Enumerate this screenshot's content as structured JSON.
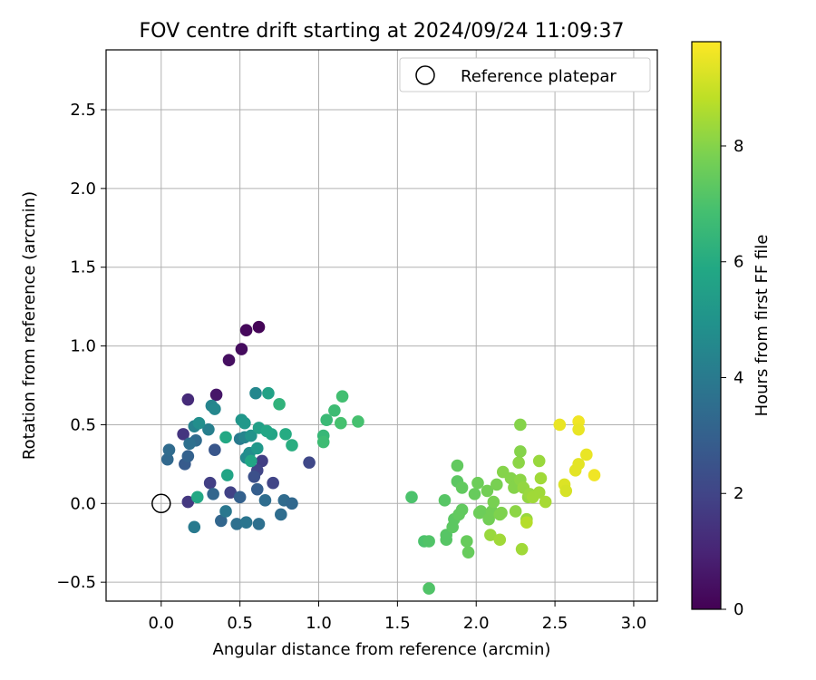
{
  "chart_data": {
    "type": "scatter",
    "title": "FOV centre drift starting at 2024/09/24 11:09:37",
    "xlabel": "Angular distance from reference (arcmin)",
    "ylabel": "Rotation from reference (arcmin)",
    "xlim": [
      -0.35,
      3.15
    ],
    "ylim": [
      -0.62,
      2.88
    ],
    "x_ticks": [
      "0.0",
      "0.5",
      "1.0",
      "1.5",
      "2.0",
      "2.5",
      "3.0"
    ],
    "y_ticks": [
      "−0.5",
      "0.0",
      "0.5",
      "1.0",
      "1.5",
      "2.0",
      "2.5"
    ],
    "grid": true,
    "legend": {
      "placement": "top-right",
      "entries": [
        "Reference platepar"
      ]
    },
    "reference_point": {
      "x": 0.0,
      "y": 0.0
    },
    "colorbar": {
      "label": "Hours from first FF file",
      "colormap": "viridis",
      "range": [
        0,
        9.8
      ],
      "ticks": [
        "0",
        "2",
        "4",
        "6",
        "8"
      ]
    },
    "colors": [
      "#440154",
      "#3b528b",
      "#21918c",
      "#5ec962",
      "#fde725"
    ],
    "points": [
      {
        "x": 0.62,
        "y": 1.12,
        "h": 0.1
      },
      {
        "x": 0.54,
        "y": 1.1,
        "h": 0.2
      },
      {
        "x": 0.51,
        "y": 0.98,
        "h": 0.3
      },
      {
        "x": 0.43,
        "y": 0.91,
        "h": 0.4
      },
      {
        "x": 0.35,
        "y": 0.69,
        "h": 0.6
      },
      {
        "x": 0.17,
        "y": 0.66,
        "h": 1.2
      },
      {
        "x": 0.14,
        "y": 0.44,
        "h": 1.5
      },
      {
        "x": 0.17,
        "y": 0.01,
        "h": 1.6
      },
      {
        "x": 0.31,
        "y": 0.13,
        "h": 1.8
      },
      {
        "x": 0.44,
        "y": 0.07,
        "h": 1.9
      },
      {
        "x": 0.64,
        "y": 0.27,
        "h": 1.8
      },
      {
        "x": 0.61,
        "y": 0.21,
        "h": 2.0
      },
      {
        "x": 0.71,
        "y": 0.13,
        "h": 2.0
      },
      {
        "x": 0.94,
        "y": 0.26,
        "h": 2.1
      },
      {
        "x": 0.59,
        "y": 0.17,
        "h": 2.4
      },
      {
        "x": 0.34,
        "y": 0.34,
        "h": 2.6
      },
      {
        "x": 0.15,
        "y": 0.25,
        "h": 2.8
      },
      {
        "x": 0.17,
        "y": 0.3,
        "h": 3.0
      },
      {
        "x": 0.61,
        "y": 0.09,
        "h": 2.9
      },
      {
        "x": 0.5,
        "y": 0.04,
        "h": 3.0
      },
      {
        "x": 0.33,
        "y": 0.06,
        "h": 3.2
      },
      {
        "x": 0.04,
        "y": 0.28,
        "h": 3.3
      },
      {
        "x": 0.05,
        "y": 0.34,
        "h": 3.4
      },
      {
        "x": 0.22,
        "y": 0.4,
        "h": 3.4
      },
      {
        "x": 0.18,
        "y": 0.38,
        "h": 3.6
      },
      {
        "x": 0.38,
        "y": -0.11,
        "h": 3.2
      },
      {
        "x": 0.48,
        "y": -0.13,
        "h": 3.6
      },
      {
        "x": 0.54,
        "y": -0.12,
        "h": 3.8
      },
      {
        "x": 0.62,
        "y": -0.13,
        "h": 3.6
      },
      {
        "x": 0.21,
        "y": -0.15,
        "h": 4.0
      },
      {
        "x": 0.41,
        "y": -0.05,
        "h": 3.9
      },
      {
        "x": 0.66,
        "y": 0.02,
        "h": 3.5
      },
      {
        "x": 0.76,
        "y": -0.07,
        "h": 3.5
      },
      {
        "x": 0.78,
        "y": 0.02,
        "h": 3.4
      },
      {
        "x": 0.83,
        "y": 0.0,
        "h": 3.3
      },
      {
        "x": 0.3,
        "y": 0.47,
        "h": 4.2
      },
      {
        "x": 0.21,
        "y": 0.49,
        "h": 4.3
      },
      {
        "x": 0.32,
        "y": 0.62,
        "h": 4.4
      },
      {
        "x": 0.34,
        "y": 0.6,
        "h": 4.5
      },
      {
        "x": 0.24,
        "y": 0.51,
        "h": 4.8
      },
      {
        "x": 0.5,
        "y": 0.41,
        "h": 4.0
      },
      {
        "x": 0.53,
        "y": 0.42,
        "h": 4.4
      },
      {
        "x": 0.6,
        "y": 0.7,
        "h": 4.5
      },
      {
        "x": 0.54,
        "y": 0.29,
        "h": 4.6
      },
      {
        "x": 0.56,
        "y": 0.32,
        "h": 4.8
      },
      {
        "x": 0.57,
        "y": 0.43,
        "h": 5.0
      },
      {
        "x": 0.51,
        "y": 0.53,
        "h": 5.1
      },
      {
        "x": 0.53,
        "y": 0.51,
        "h": 5.2
      },
      {
        "x": 0.61,
        "y": 0.35,
        "h": 5.2
      },
      {
        "x": 0.62,
        "y": 0.48,
        "h": 5.5
      },
      {
        "x": 0.68,
        "y": 0.7,
        "h": 5.6
      },
      {
        "x": 0.7,
        "y": 0.44,
        "h": 5.7
      },
      {
        "x": 0.67,
        "y": 0.46,
        "h": 5.8
      },
      {
        "x": 0.57,
        "y": 0.27,
        "h": 5.8
      },
      {
        "x": 0.42,
        "y": 0.18,
        "h": 5.7
      },
      {
        "x": 0.41,
        "y": 0.42,
        "h": 5.9
      },
      {
        "x": 0.23,
        "y": 0.04,
        "h": 5.9
      },
      {
        "x": 0.79,
        "y": 0.44,
        "h": 6.0
      },
      {
        "x": 0.83,
        "y": 0.37,
        "h": 6.1
      },
      {
        "x": 0.75,
        "y": 0.63,
        "h": 6.3
      },
      {
        "x": 1.03,
        "y": 0.43,
        "h": 6.5
      },
      {
        "x": 1.05,
        "y": 0.53,
        "h": 6.6
      },
      {
        "x": 1.03,
        "y": 0.39,
        "h": 6.7
      },
      {
        "x": 1.1,
        "y": 0.59,
        "h": 6.7
      },
      {
        "x": 1.15,
        "y": 0.68,
        "h": 6.8
      },
      {
        "x": 1.14,
        "y": 0.51,
        "h": 6.9
      },
      {
        "x": 1.25,
        "y": 0.52,
        "h": 6.9
      },
      {
        "x": 1.59,
        "y": 0.04,
        "h": 7.0
      },
      {
        "x": 1.67,
        "y": -0.24,
        "h": 7.0
      },
      {
        "x": 1.7,
        "y": -0.24,
        "h": 7.1
      },
      {
        "x": 1.7,
        "y": -0.54,
        "h": 7.1
      },
      {
        "x": 1.8,
        "y": 0.02,
        "h": 7.2
      },
      {
        "x": 1.81,
        "y": -0.2,
        "h": 7.2
      },
      {
        "x": 1.81,
        "y": -0.23,
        "h": 7.2
      },
      {
        "x": 1.85,
        "y": -0.15,
        "h": 7.3
      },
      {
        "x": 1.86,
        "y": -0.1,
        "h": 7.3
      },
      {
        "x": 1.88,
        "y": 0.14,
        "h": 7.3
      },
      {
        "x": 1.88,
        "y": 0.24,
        "h": 7.4
      },
      {
        "x": 1.89,
        "y": -0.07,
        "h": 7.4
      },
      {
        "x": 1.91,
        "y": 0.1,
        "h": 7.4
      },
      {
        "x": 1.91,
        "y": -0.04,
        "h": 7.4
      },
      {
        "x": 1.94,
        "y": -0.24,
        "h": 7.5
      },
      {
        "x": 1.95,
        "y": -0.31,
        "h": 7.5
      },
      {
        "x": 1.99,
        "y": 0.06,
        "h": 7.5
      },
      {
        "x": 2.01,
        "y": 0.13,
        "h": 7.6
      },
      {
        "x": 2.02,
        "y": -0.06,
        "h": 7.6
      },
      {
        "x": 2.03,
        "y": -0.05,
        "h": 7.6
      },
      {
        "x": 2.07,
        "y": 0.08,
        "h": 7.7
      },
      {
        "x": 2.08,
        "y": -0.1,
        "h": 7.7
      },
      {
        "x": 2.1,
        "y": -0.05,
        "h": 7.7
      },
      {
        "x": 2.11,
        "y": 0.01,
        "h": 7.8
      },
      {
        "x": 2.13,
        "y": 0.12,
        "h": 7.8
      },
      {
        "x": 2.15,
        "y": -0.07,
        "h": 7.9
      },
      {
        "x": 2.16,
        "y": -0.06,
        "h": 7.9
      },
      {
        "x": 2.17,
        "y": 0.2,
        "h": 8.0
      },
      {
        "x": 2.22,
        "y": 0.16,
        "h": 8.0
      },
      {
        "x": 2.24,
        "y": 0.1,
        "h": 8.0
      },
      {
        "x": 2.25,
        "y": -0.05,
        "h": 8.1
      },
      {
        "x": 2.27,
        "y": 0.26,
        "h": 8.1
      },
      {
        "x": 2.28,
        "y": 0.15,
        "h": 8.1
      },
      {
        "x": 2.28,
        "y": 0.33,
        "h": 8.0
      },
      {
        "x": 2.28,
        "y": 0.5,
        "h": 8.0
      },
      {
        "x": 2.29,
        "y": -0.29,
        "h": 8.4
      },
      {
        "x": 2.3,
        "y": 0.1,
        "h": 8.2
      },
      {
        "x": 2.32,
        "y": -0.1,
        "h": 8.3
      },
      {
        "x": 2.33,
        "y": 0.04,
        "h": 8.2
      },
      {
        "x": 2.34,
        "y": 0.06,
        "h": 8.3
      },
      {
        "x": 2.36,
        "y": 0.04,
        "h": 8.4
      },
      {
        "x": 2.4,
        "y": 0.27,
        "h": 8.3
      },
      {
        "x": 2.4,
        "y": 0.07,
        "h": 8.4
      },
      {
        "x": 2.41,
        "y": 0.16,
        "h": 8.4
      },
      {
        "x": 2.44,
        "y": 0.01,
        "h": 8.5
      },
      {
        "x": 2.09,
        "y": -0.2,
        "h": 8.3
      },
      {
        "x": 2.15,
        "y": -0.23,
        "h": 8.4
      },
      {
        "x": 2.32,
        "y": -0.12,
        "h": 8.7
      },
      {
        "x": 2.53,
        "y": 0.5,
        "h": 9.5
      },
      {
        "x": 2.56,
        "y": 0.12,
        "h": 9.3
      },
      {
        "x": 2.57,
        "y": 0.08,
        "h": 9.2
      },
      {
        "x": 2.63,
        "y": 0.21,
        "h": 9.4
      },
      {
        "x": 2.65,
        "y": 0.25,
        "h": 9.4
      },
      {
        "x": 2.65,
        "y": 0.52,
        "h": 9.6
      },
      {
        "x": 2.65,
        "y": 0.47,
        "h": 9.5
      },
      {
        "x": 2.7,
        "y": 0.31,
        "h": 9.5
      },
      {
        "x": 2.75,
        "y": 0.18,
        "h": 9.6
      }
    ]
  }
}
